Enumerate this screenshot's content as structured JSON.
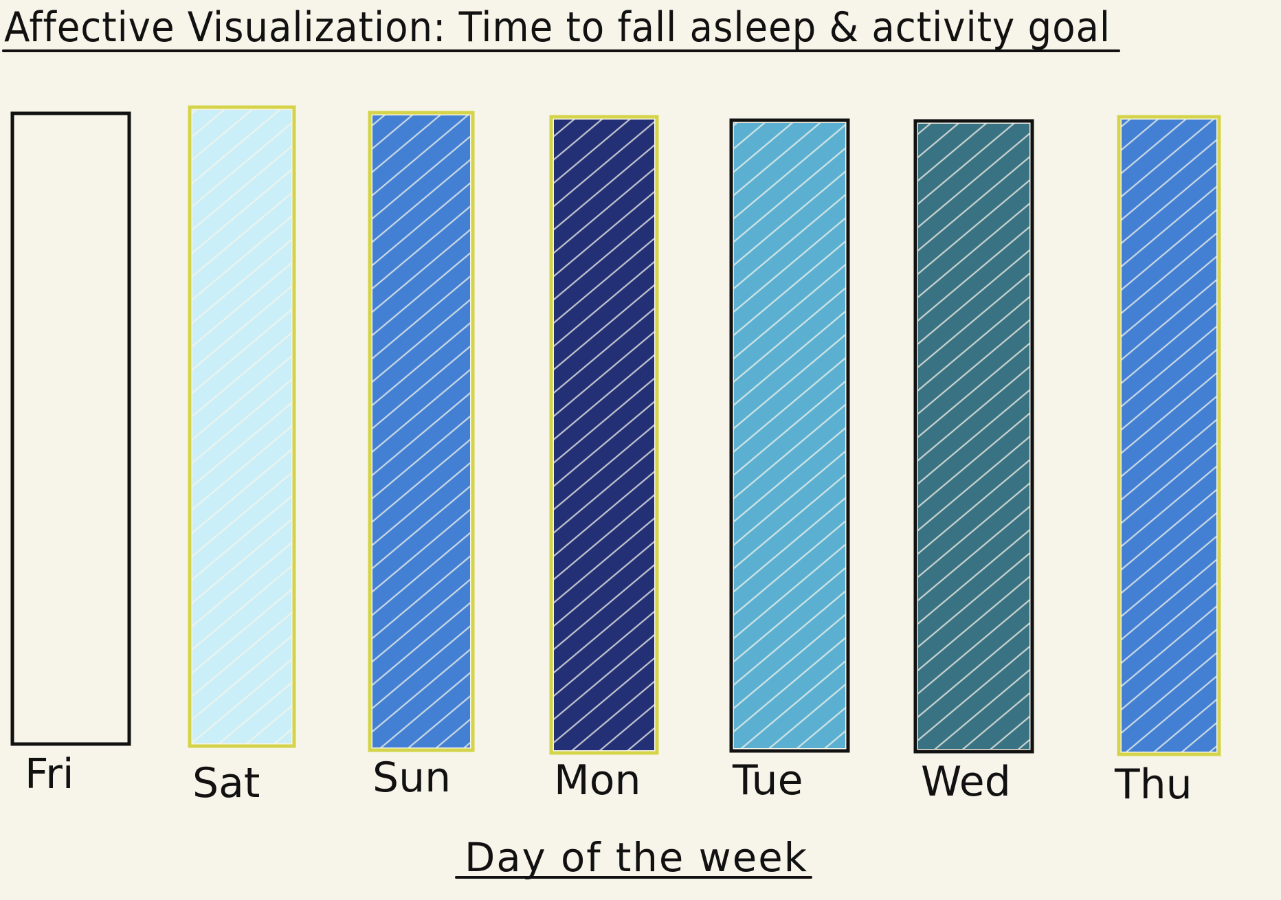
{
  "chart_data": {
    "type": "bar",
    "title": "Affective Visualization: Time to fall asleep & activity goal",
    "xlabel": "Day of the week",
    "ylabel": "",
    "categories": [
      "Fri",
      "Sat",
      "Sun",
      "Mon",
      "Tue",
      "Wed",
      "Thu"
    ],
    "bars": [
      {
        "day": "Fri",
        "fill_color": "none",
        "outline_color": "#111111",
        "activity_goal_met": false
      },
      {
        "day": "Sat",
        "fill_color": "#c4eefa",
        "outline_color": "#d4d44a",
        "activity_goal_met": true
      },
      {
        "day": "Sun",
        "fill_color": "#2a6fd0",
        "outline_color": "#d4d44a",
        "activity_goal_met": true
      },
      {
        "day": "Mon",
        "fill_color": "#061466",
        "outline_color": "#d4d44a",
        "activity_goal_met": true
      },
      {
        "day": "Tue",
        "fill_color": "#45a6cf",
        "outline_color": "#111111",
        "activity_goal_met": false
      },
      {
        "day": "Wed",
        "fill_color": "#1f6074",
        "outline_color": "#111111",
        "activity_goal_met": false
      },
      {
        "day": "Thu",
        "fill_color": "#2a6fd0",
        "outline_color": "#d4d44a",
        "activity_goal_met": true
      }
    ],
    "grid": false,
    "legend": "none"
  }
}
